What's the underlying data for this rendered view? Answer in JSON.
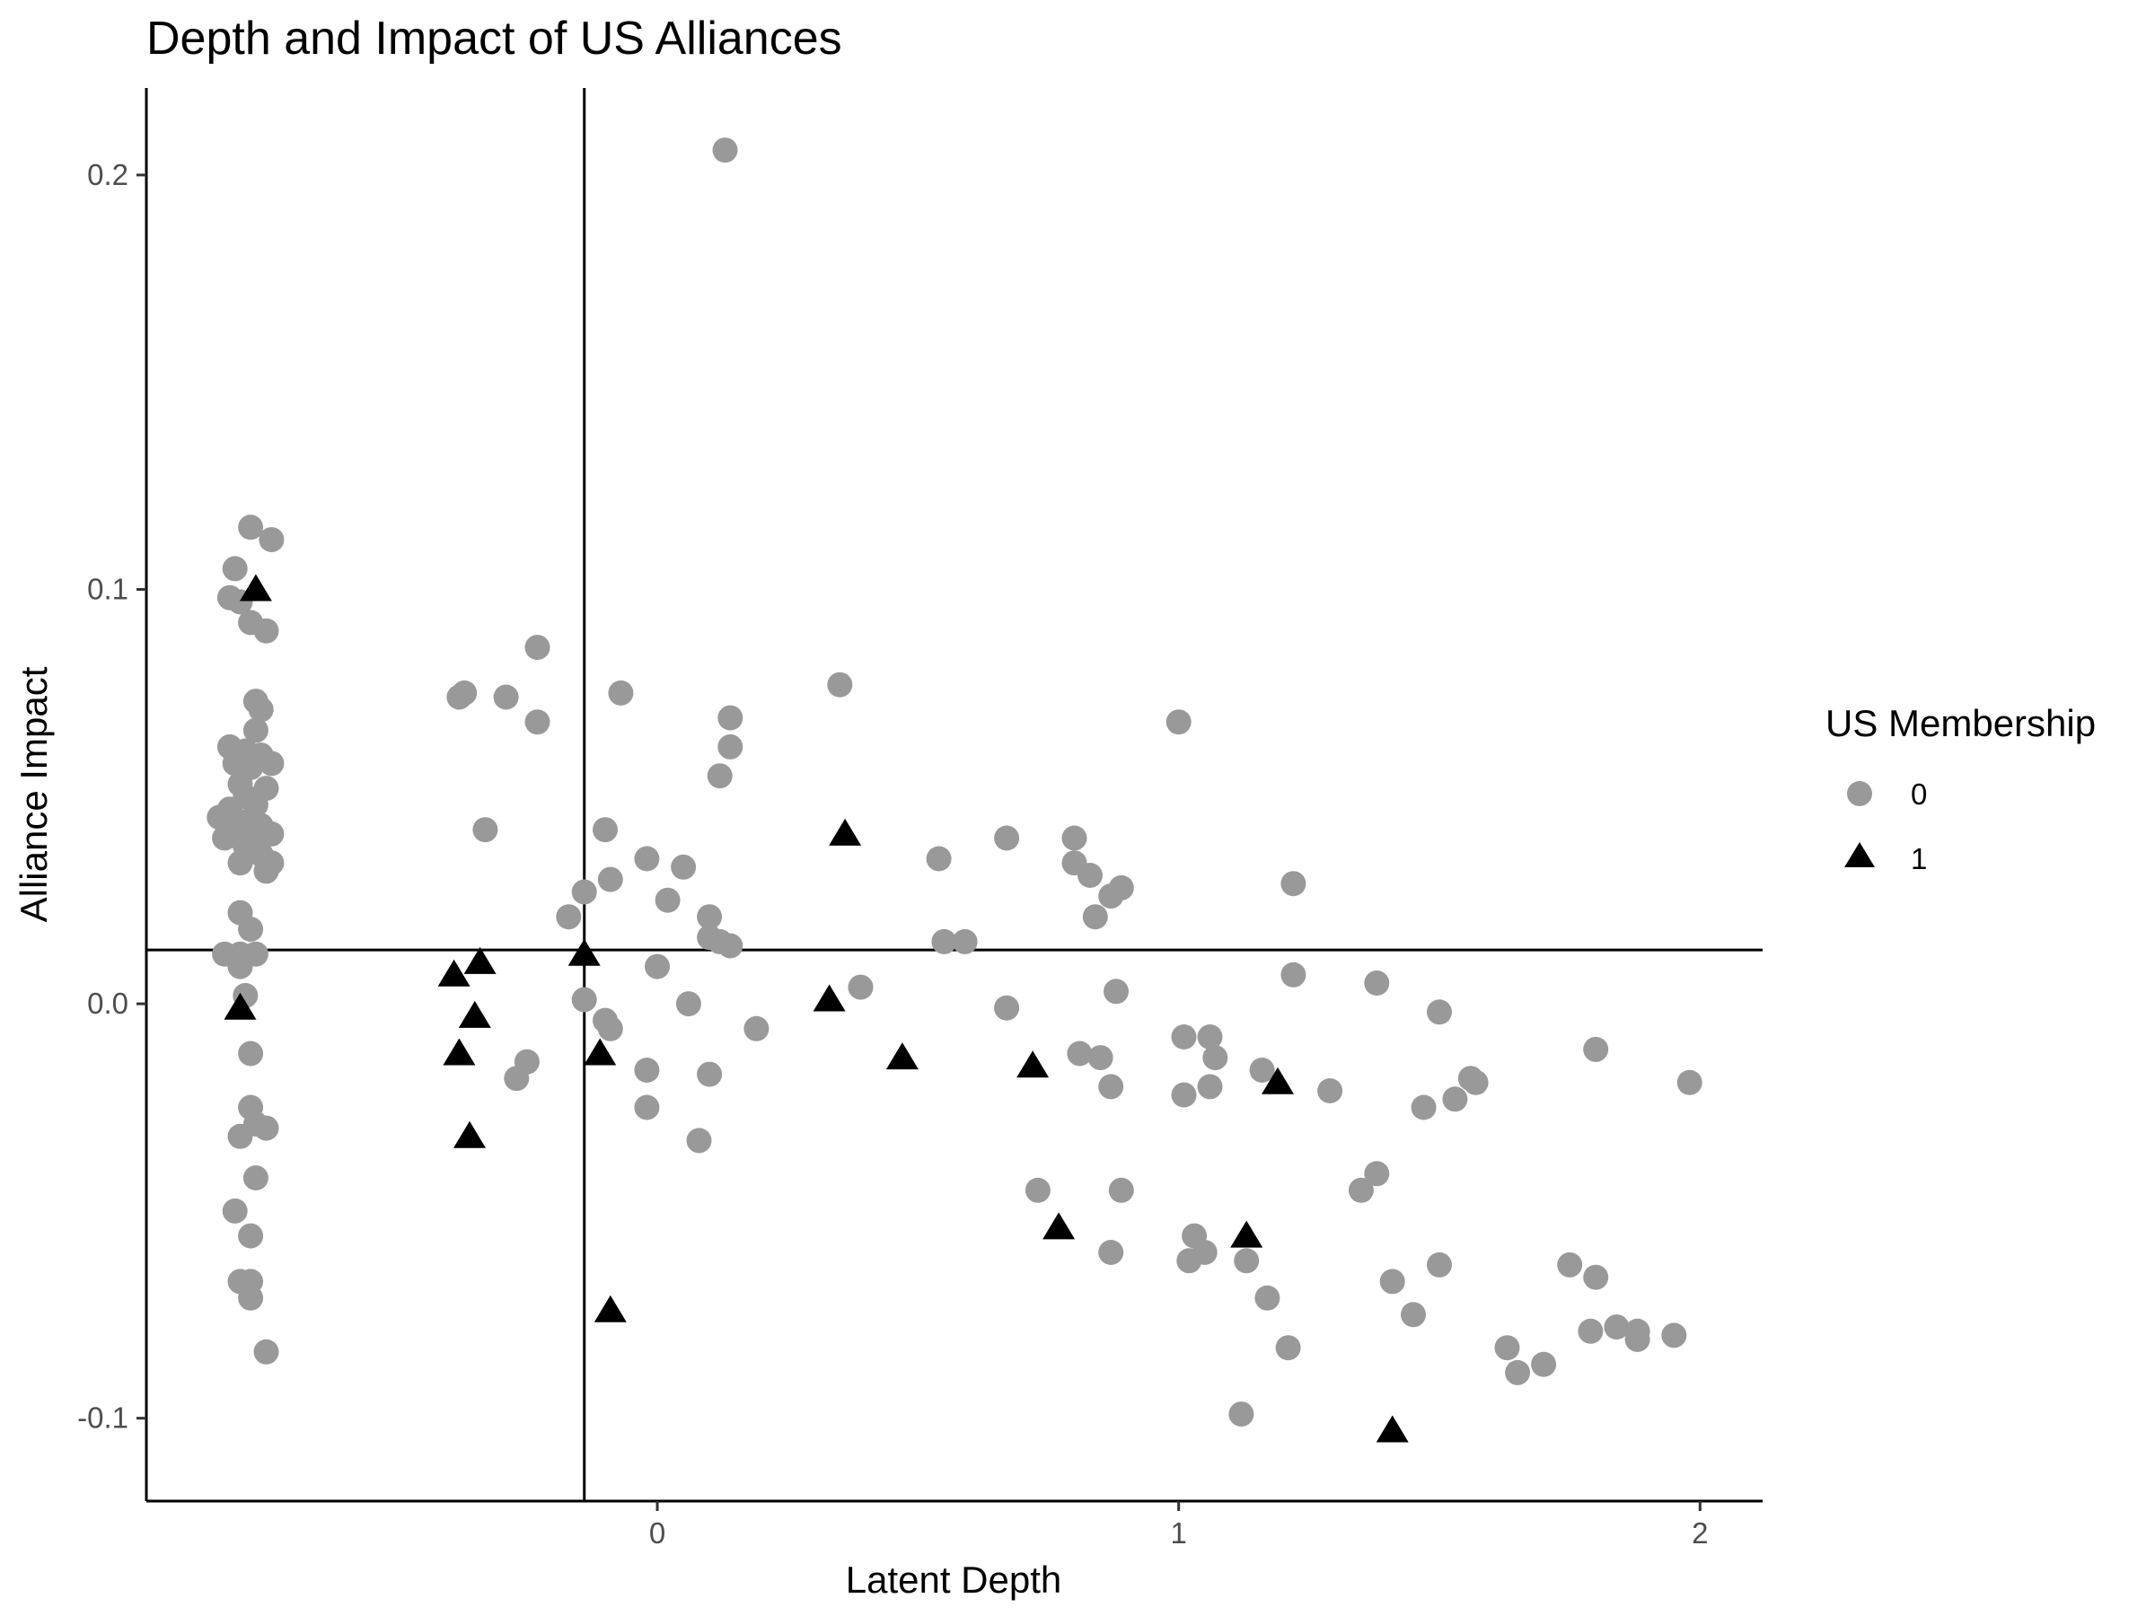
{
  "chart_data": {
    "type": "scatter",
    "title": "Depth and Impact of US Alliances",
    "xlabel": "Latent Depth",
    "ylabel": "Alliance Impact",
    "xlim": [
      -0.98,
      2.12
    ],
    "ylim": [
      -0.12,
      0.221
    ],
    "x_ticks": [
      0,
      1,
      2
    ],
    "x_tick_labels": [
      "0",
      "1",
      "2"
    ],
    "y_ticks": [
      -0.1,
      0.0,
      0.1,
      0.2
    ],
    "y_tick_labels": [
      "-0.1",
      "0.0",
      "0.1",
      "0.2"
    ],
    "reference_lines": {
      "vertical_x": -0.14,
      "horizontal_y": 0.013
    },
    "grid": false,
    "legend": {
      "title": "US Membership",
      "position": "right",
      "entries": [
        {
          "label": "0",
          "shape": "circle",
          "color": "#999999"
        },
        {
          "label": "1",
          "shape": "triangle",
          "color": "#000000"
        }
      ]
    },
    "series": [
      {
        "membership": "0",
        "shape": "circle",
        "color": "#999999",
        "points": [
          [
            -0.78,
            0.115
          ],
          [
            -0.74,
            0.112
          ],
          [
            -0.81,
            0.105
          ],
          [
            -0.82,
            0.098
          ],
          [
            -0.8,
            0.097
          ],
          [
            -0.78,
            0.092
          ],
          [
            -0.75,
            0.09
          ],
          [
            -0.77,
            0.073
          ],
          [
            -0.76,
            0.071
          ],
          [
            -0.77,
            0.066
          ],
          [
            -0.82,
            0.062
          ],
          [
            -0.79,
            0.061
          ],
          [
            -0.76,
            0.06
          ],
          [
            -0.81,
            0.058
          ],
          [
            -0.74,
            0.058
          ],
          [
            -0.78,
            0.057
          ],
          [
            -0.8,
            0.053
          ],
          [
            -0.75,
            0.052
          ],
          [
            -0.79,
            0.05
          ],
          [
            -0.77,
            0.048
          ],
          [
            -0.82,
            0.047
          ],
          [
            -0.84,
            0.045
          ],
          [
            -0.8,
            0.044
          ],
          [
            -0.76,
            0.043
          ],
          [
            -0.78,
            0.042
          ],
          [
            -0.74,
            0.041
          ],
          [
            -0.8,
            0.04
          ],
          [
            -0.83,
            0.04
          ],
          [
            -0.77,
            0.039
          ],
          [
            -0.79,
            0.038
          ],
          [
            -0.76,
            0.036
          ],
          [
            -0.8,
            0.034
          ],
          [
            -0.74,
            0.034
          ],
          [
            -0.75,
            0.032
          ],
          [
            -0.8,
            0.022
          ],
          [
            -0.78,
            0.018
          ],
          [
            -0.83,
            0.012
          ],
          [
            -0.8,
            0.012
          ],
          [
            -0.77,
            0.012
          ],
          [
            -0.8,
            0.009
          ],
          [
            -0.79,
            0.002
          ],
          [
            -0.78,
            -0.012
          ],
          [
            -0.78,
            -0.025
          ],
          [
            -0.75,
            -0.03
          ],
          [
            -0.77,
            -0.029
          ],
          [
            -0.8,
            -0.032
          ],
          [
            -0.77,
            -0.042
          ],
          [
            -0.81,
            -0.05
          ],
          [
            -0.78,
            -0.056
          ],
          [
            -0.8,
            -0.067
          ],
          [
            -0.78,
            -0.067
          ],
          [
            -0.78,
            -0.071
          ],
          [
            -0.75,
            -0.084
          ],
          [
            -0.38,
            0.074
          ],
          [
            -0.37,
            0.075
          ],
          [
            -0.29,
            0.074
          ],
          [
            -0.23,
            0.086
          ],
          [
            -0.23,
            0.068
          ],
          [
            -0.33,
            0.042
          ],
          [
            -0.25,
            -0.014
          ],
          [
            -0.27,
            -0.018
          ],
          [
            -0.17,
            0.021
          ],
          [
            -0.14,
            0.027
          ],
          [
            -0.14,
            0.001
          ],
          [
            -0.1,
            -0.004
          ],
          [
            -0.09,
            -0.006
          ],
          [
            -0.1,
            0.042
          ],
          [
            -0.09,
            0.03
          ],
          [
            -0.07,
            0.075
          ],
          [
            -0.02,
            0.035
          ],
          [
            0.02,
            0.025
          ],
          [
            0.05,
            0.033
          ],
          [
            0.0,
            0.009
          ],
          [
            -0.02,
            -0.016
          ],
          [
            -0.02,
            -0.025
          ],
          [
            0.06,
            0.0
          ],
          [
            0.1,
            0.021
          ],
          [
            0.1,
            0.016
          ],
          [
            0.12,
            0.015
          ],
          [
            0.14,
            0.014
          ],
          [
            0.1,
            -0.017
          ],
          [
            0.08,
            -0.033
          ],
          [
            0.19,
            -0.006
          ],
          [
            0.12,
            0.055
          ],
          [
            0.14,
            0.062
          ],
          [
            0.14,
            0.069
          ],
          [
            0.13,
            0.206
          ],
          [
            0.35,
            0.077
          ],
          [
            0.39,
            0.004
          ],
          [
            0.54,
            0.035
          ],
          [
            0.55,
            0.015
          ],
          [
            0.59,
            0.015
          ],
          [
            0.67,
            0.04
          ],
          [
            0.67,
            -0.001
          ],
          [
            0.73,
            -0.045
          ],
          [
            0.8,
            0.04
          ],
          [
            0.8,
            0.034
          ],
          [
            0.83,
            0.031
          ],
          [
            0.84,
            0.021
          ],
          [
            0.87,
            0.026
          ],
          [
            0.89,
            0.028
          ],
          [
            0.88,
            0.003
          ],
          [
            0.81,
            -0.012
          ],
          [
            0.85,
            -0.013
          ],
          [
            0.87,
            -0.02
          ],
          [
            0.89,
            -0.045
          ],
          [
            0.87,
            -0.06
          ],
          [
            1.0,
            0.068
          ],
          [
            1.01,
            -0.008
          ],
          [
            1.01,
            -0.022
          ],
          [
            1.03,
            -0.056
          ],
          [
            1.02,
            -0.062
          ],
          [
            1.05,
            -0.06
          ],
          [
            1.06,
            -0.008
          ],
          [
            1.07,
            -0.013
          ],
          [
            1.06,
            -0.02
          ],
          [
            1.13,
            -0.062
          ],
          [
            1.16,
            -0.016
          ],
          [
            1.17,
            -0.071
          ],
          [
            1.21,
            -0.083
          ],
          [
            1.12,
            -0.099
          ],
          [
            1.22,
            0.029
          ],
          [
            1.22,
            0.007
          ],
          [
            1.29,
            -0.021
          ],
          [
            1.35,
            -0.045
          ],
          [
            1.38,
            -0.041
          ],
          [
            1.38,
            0.005
          ],
          [
            1.41,
            -0.067
          ],
          [
            1.45,
            -0.075
          ],
          [
            1.47,
            -0.025
          ],
          [
            1.5,
            -0.002
          ],
          [
            1.5,
            -0.063
          ],
          [
            1.53,
            -0.023
          ],
          [
            1.56,
            -0.018
          ],
          [
            1.57,
            -0.019
          ],
          [
            1.63,
            -0.083
          ],
          [
            1.65,
            -0.089
          ],
          [
            1.7,
            -0.087
          ],
          [
            1.75,
            -0.063
          ],
          [
            1.79,
            -0.079
          ],
          [
            1.8,
            -0.011
          ],
          [
            1.8,
            -0.066
          ],
          [
            1.84,
            -0.078
          ],
          [
            1.88,
            -0.079
          ],
          [
            1.88,
            -0.081
          ],
          [
            1.95,
            -0.08
          ],
          [
            1.98,
            -0.019
          ]
        ]
      },
      {
        "membership": "1",
        "shape": "triangle",
        "color": "#000000",
        "points": [
          [
            -0.77,
            0.1
          ],
          [
            -0.8,
            -0.001
          ],
          [
            -0.39,
            0.007
          ],
          [
            -0.34,
            0.01
          ],
          [
            -0.35,
            -0.003
          ],
          [
            -0.38,
            -0.012
          ],
          [
            -0.36,
            -0.032
          ],
          [
            -0.14,
            0.012
          ],
          [
            -0.11,
            -0.012
          ],
          [
            -0.09,
            -0.074
          ],
          [
            0.33,
            0.001
          ],
          [
            0.36,
            0.041
          ],
          [
            0.47,
            -0.013
          ],
          [
            0.72,
            -0.015
          ],
          [
            0.77,
            -0.054
          ],
          [
            1.13,
            -0.056
          ],
          [
            1.19,
            -0.019
          ],
          [
            1.41,
            -0.103
          ]
        ]
      }
    ]
  }
}
